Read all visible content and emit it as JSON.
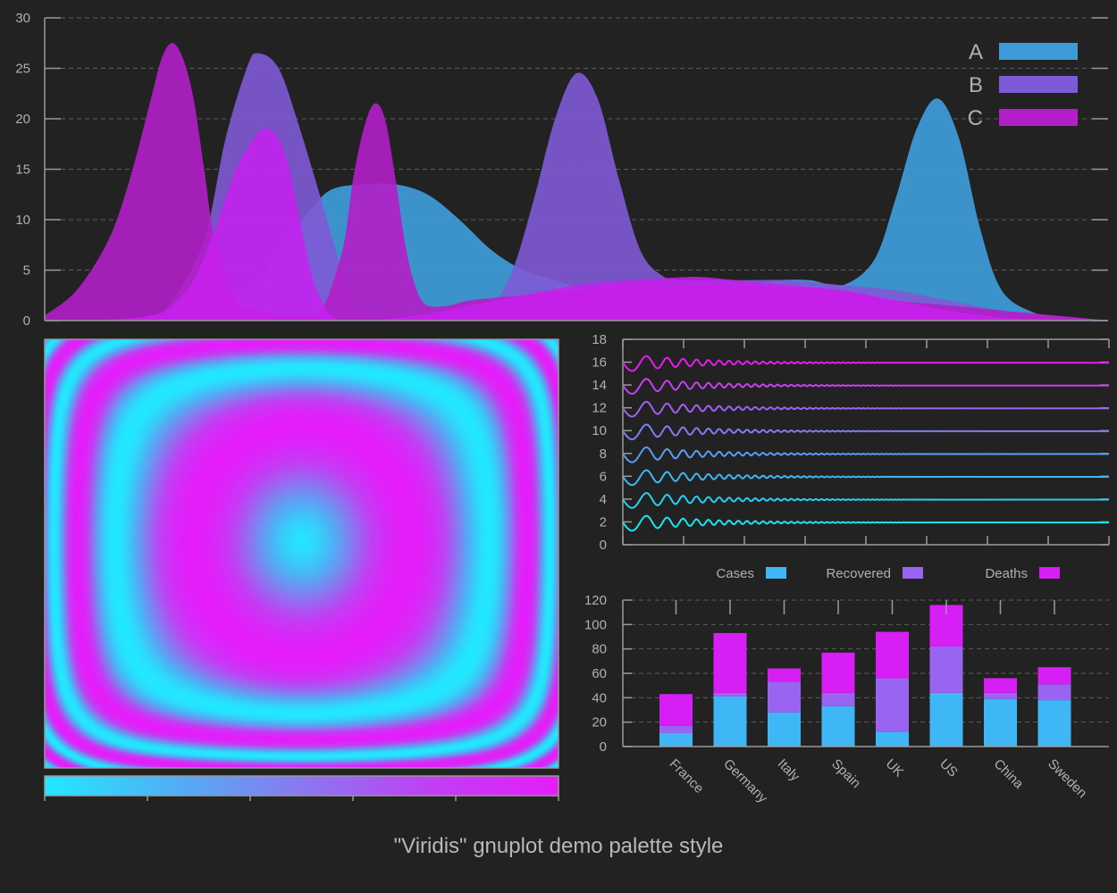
{
  "caption": "\"Viridis\" gnuplot demo palette style",
  "chart_data": [
    {
      "type": "area",
      "name": "overlapping-distributions",
      "xlim": [
        0,
        100
      ],
      "ylim": [
        0,
        30
      ],
      "yticks": [
        0,
        5,
        10,
        15,
        20,
        25,
        30
      ],
      "grid": true,
      "legend_position": "top-right",
      "series": [
        {
          "name": "A",
          "color": "#3e9ad6",
          "x": [
            0,
            5,
            10,
            15,
            20,
            22,
            25,
            27,
            30,
            33,
            36,
            39,
            42,
            45,
            48,
            51,
            54,
            57,
            60,
            63,
            66,
            69,
            72,
            75,
            78,
            80,
            82,
            84,
            86,
            88,
            90,
            93,
            96,
            100
          ],
          "y": [
            0,
            0,
            0,
            0.5,
            4,
            7,
            11,
            13,
            13.5,
            13.5,
            12.5,
            10,
            7,
            5,
            4,
            3,
            2,
            1.2,
            1.5,
            3,
            3.5,
            4,
            4,
            3.5,
            6,
            12,
            19,
            22,
            18,
            9,
            3,
            0.8,
            0.2,
            0
          ]
        },
        {
          "name": "B",
          "color": "#7f5ad6",
          "x": [
            0,
            5,
            10,
            12,
            15,
            17,
            19,
            20,
            22,
            24,
            26,
            28,
            30,
            35,
            40,
            42,
            44,
            46,
            48,
            50,
            52,
            54,
            56,
            58,
            60,
            65,
            70,
            75,
            80,
            85,
            90,
            95,
            100
          ],
          "y": [
            0,
            0,
            0.5,
            2,
            8,
            18,
            25,
            26.5,
            25,
            19,
            12,
            5,
            1,
            0.5,
            0.5,
            1.5,
            5,
            12,
            20,
            24.5,
            22,
            14,
            7,
            4.5,
            4,
            4,
            4,
            3.5,
            3,
            2,
            1,
            0.5,
            0
          ]
        },
        {
          "name": "C",
          "color": "#b21fc8",
          "x": [
            0,
            3,
            6,
            8,
            10,
            11,
            12,
            13,
            14,
            15,
            16,
            18,
            20,
            22,
            24,
            26,
            28,
            29,
            30,
            31,
            32,
            33,
            34,
            35,
            36,
            38,
            40,
            45,
            50,
            55,
            60,
            65,
            70,
            75,
            80,
            85,
            90,
            100
          ],
          "y": [
            0.5,
            3,
            8,
            14,
            22,
            26,
            27.5,
            26,
            22,
            15,
            8,
            2,
            1,
            0.5,
            0.5,
            1,
            7,
            14,
            19,
            21.5,
            20,
            14,
            7,
            3,
            1.5,
            1.5,
            2,
            2.5,
            3,
            3.5,
            3.5,
            3.5,
            3.2,
            3,
            2,
            1.5,
            1,
            0
          ]
        },
        {
          "name": "",
          "color": "#c820f0",
          "x": [
            0,
            5,
            10,
            12,
            14,
            16,
            18,
            20,
            21,
            22,
            23,
            24,
            25,
            26,
            27,
            28,
            30,
            35,
            40,
            45,
            50,
            55,
            60,
            62,
            65,
            70,
            75,
            80,
            85,
            90,
            95,
            100
          ],
          "y": [
            0,
            0,
            0.5,
            1.5,
            4,
            9,
            15,
            18.5,
            19,
            18,
            15,
            10,
            5,
            2,
            0.5,
            0,
            0,
            0.5,
            1.5,
            2.5,
            3.5,
            4,
            4.3,
            4.3,
            4,
            3.5,
            3,
            2,
            1,
            0.3,
            0.1,
            0
          ]
        }
      ]
    },
    {
      "type": "heatmap",
      "name": "palette-rings",
      "description_ok": false,
      "palette": [
        "#22e8ff",
        "#4fb0f5",
        "#8a78f0",
        "#c040f4",
        "#e51dfa"
      ],
      "colorbox": true
    },
    {
      "type": "line",
      "name": "damped-oscillations",
      "xlim": [
        0,
        8
      ],
      "ylim": [
        0,
        18
      ],
      "yticks": [
        0,
        2,
        4,
        6,
        8,
        10,
        12,
        14,
        16,
        18
      ],
      "xtick_count": 8,
      "series_offsets": [
        2,
        4,
        6,
        8,
        10,
        12,
        14,
        16
      ],
      "series_colors": [
        "#1ae6ee",
        "#2ad0f2",
        "#42b6f4",
        "#5b9cf5",
        "#7e7ef4",
        "#a060f4",
        "#c840f4",
        "#e51dee"
      ]
    },
    {
      "type": "bar",
      "name": "stacked-country-bars",
      "stacked": true,
      "categories": [
        "France",
        "Germany",
        "Italy",
        "Spain",
        "UK",
        "US",
        "China",
        "Sweden"
      ],
      "ylim": [
        0,
        120
      ],
      "yticks": [
        0,
        20,
        40,
        60,
        80,
        100,
        120
      ],
      "legend_position": "top",
      "series": [
        {
          "name": "Cases",
          "color": "#3fb6f5",
          "values": [
            11,
            41,
            28,
            33,
            12,
            44,
            39,
            38
          ]
        },
        {
          "name": "Recovered",
          "color": "#9a64f2",
          "values": [
            6,
            3,
            25,
            11,
            44,
            38,
            5,
            13
          ]
        },
        {
          "name": "Deaths",
          "color": "#d71ef5",
          "values": [
            26,
            49,
            11,
            33,
            38,
            34,
            12,
            14
          ]
        }
      ]
    }
  ]
}
